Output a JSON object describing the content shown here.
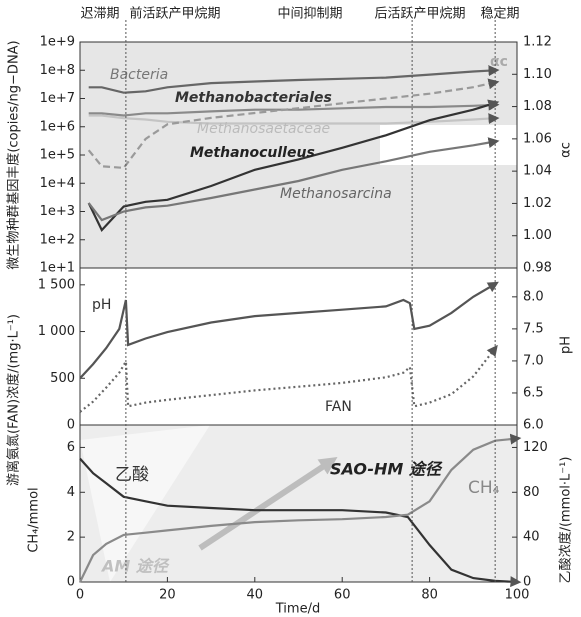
{
  "chart_data": [
    {
      "type": "line",
      "yscale": "log",
      "phases": [
        "迟滞期",
        "前活跃产甲烷期",
        "中间抑制期",
        "后活跃产甲烷期",
        "稳定期"
      ],
      "phase_boundaries": [
        10.5,
        76,
        95
      ],
      "ylabel": "微生物种群基因丰度(copies/ng−DNA)",
      "y2label": "αc",
      "xlim": [
        0,
        100
      ],
      "ylim": [
        10,
        1000000000
      ],
      "yticks": [
        {
          "value": 10,
          "label": "1e+1"
        },
        {
          "value": 100,
          "label": "1e+2"
        },
        {
          "value": 1000,
          "label": "1e+3"
        },
        {
          "value": 10000,
          "label": "1e+4"
        },
        {
          "value": 100000,
          "label": "1e+5"
        },
        {
          "value": 1000000,
          "label": "1e+6"
        },
        {
          "value": 10000000,
          "label": "1e+7"
        },
        {
          "value": 100000000,
          "label": "1e+8"
        },
        {
          "value": 1000000000,
          "label": "1e+9"
        }
      ],
      "y2lim": [
        0.98,
        1.12
      ],
      "y2ticks": [
        0.98,
        {
          "value": 1,
          "label": "1.00"
        },
        1.02,
        1.04,
        1.06,
        1.08,
        {
          "value": 1.1,
          "label": "1.10"
        },
        1.12
      ],
      "x": [
        2,
        5,
        10,
        15,
        20,
        30,
        40,
        50,
        60,
        70,
        80,
        90,
        95
      ],
      "series": [
        {
          "name": "Bacteria",
          "color": "#666666",
          "values": [
            25000000,
            25000000,
            16000000,
            18000000,
            25000000,
            35000000,
            40000000,
            45000000,
            50000000,
            55000000,
            70000000,
            90000000,
            100000000
          ]
        },
        {
          "name": "Methanobacteriales",
          "color": "#8a8a8a",
          "values": [
            3000000,
            3000000,
            2500000,
            3000000,
            3000000,
            3500000,
            4000000,
            4000000,
            4500000,
            5000000,
            5000000,
            5500000,
            6000000
          ]
        },
        {
          "name": "Methanosaetaceae",
          "color": "#c4c4c4",
          "values": [
            2500000,
            2500000,
            2000000,
            1800000,
            1500000,
            1300000,
            1300000,
            1300000,
            1300000,
            1300000,
            1500000,
            1800000,
            2000000
          ]
        },
        {
          "name": "Methanoculleus",
          "color": "#333333",
          "values": [
            2000,
            220,
            1500,
            2200,
            2600,
            8000,
            30000,
            70000,
            180000,
            500000,
            1700000,
            4000000,
            7000000
          ]
        },
        {
          "name": "Methanosarcina",
          "color": "#777777",
          "values": [
            2000,
            500,
            1000,
            1400,
            1600,
            3000,
            6000,
            12000,
            30000,
            60000,
            130000,
            220000,
            300000
          ]
        },
        {
          "name": "αc",
          "color": "#9a9a9a",
          "dash": "dashed",
          "axis": "y2",
          "values": [
            1.053,
            1.043,
            1.042,
            1.06,
            1.069,
            1.073,
            1.076,
            1.079,
            1.082,
            1.085,
            1.088,
            1.092,
            1.095
          ]
        }
      ]
    },
    {
      "type": "line",
      "ylabel": "游离氨氮(FAN)浓度/(mg·L⁻¹)",
      "y2label": "pH",
      "xlim": [
        0,
        100
      ],
      "ylim": [
        0,
        1680
      ],
      "yticks": [
        0,
        500,
        {
          "value": 1000,
          "label": "1 000"
        },
        {
          "value": 1500,
          "label": "1 500"
        }
      ],
      "y2lim": [
        6,
        8.45
      ],
      "y2ticks": [
        {
          "value": 6,
          "label": "6.0"
        },
        6.5,
        {
          "value": 7,
          "label": "7.0"
        },
        7.5,
        {
          "value": 8,
          "label": "8.0"
        }
      ],
      "x": [
        0,
        3,
        6,
        9,
        10.5,
        11,
        15,
        20,
        30,
        40,
        50,
        60,
        70,
        74,
        75.5,
        76.5,
        80,
        85,
        90,
        95
      ],
      "series": [
        {
          "name": "pH",
          "color": "#555555",
          "axis": "y2",
          "values": [
            6.73,
            6.95,
            7.2,
            7.5,
            7.95,
            7.25,
            7.35,
            7.45,
            7.6,
            7.7,
            7.75,
            7.8,
            7.85,
            7.95,
            7.9,
            7.5,
            7.55,
            7.75,
            8.0,
            8.2
          ]
        },
        {
          "name": "FAN",
          "color": "#666666",
          "dash": "dotted",
          "values": [
            140,
            250,
            400,
            560,
            680,
            200,
            240,
            270,
            320,
            370,
            410,
            450,
            510,
            560,
            620,
            200,
            240,
            330,
            520,
            820
          ]
        }
      ]
    },
    {
      "type": "line",
      "xlabel": "Time/d",
      "ylabel": "CH₄/mmol",
      "y2label": "乙酸浓度/(mmol·L⁻¹)",
      "annotations": [
        "SAO-HM 途径",
        "AM 途径"
      ],
      "xlim": [
        0,
        100
      ],
      "xticks": [
        0,
        20,
        40,
        60,
        80,
        100
      ],
      "ylim": [
        0,
        7
      ],
      "yticks": [
        0,
        2,
        4,
        6
      ],
      "y2lim": [
        0,
        140
      ],
      "y2ticks": [
        0,
        40,
        80,
        120
      ],
      "x": [
        0,
        3,
        6,
        10,
        15,
        20,
        30,
        40,
        50,
        60,
        70,
        75,
        80,
        85,
        90,
        95,
        100
      ],
      "series": [
        {
          "name": "乙酸",
          "color": "#333333",
          "axis": "y2",
          "values": [
            110,
            97,
            88,
            76,
            72,
            68,
            66,
            64,
            64,
            64,
            62,
            58,
            33,
            11,
            3.5,
            1,
            0
          ]
        },
        {
          "name": "CH₄",
          "color": "#8a8a8a",
          "values": [
            0,
            1.2,
            1.7,
            2.1,
            2.2,
            2.3,
            2.5,
            2.67,
            2.75,
            2.8,
            2.9,
            3.0,
            3.6,
            5.0,
            5.9,
            6.3,
            6.4
          ]
        }
      ]
    }
  ]
}
